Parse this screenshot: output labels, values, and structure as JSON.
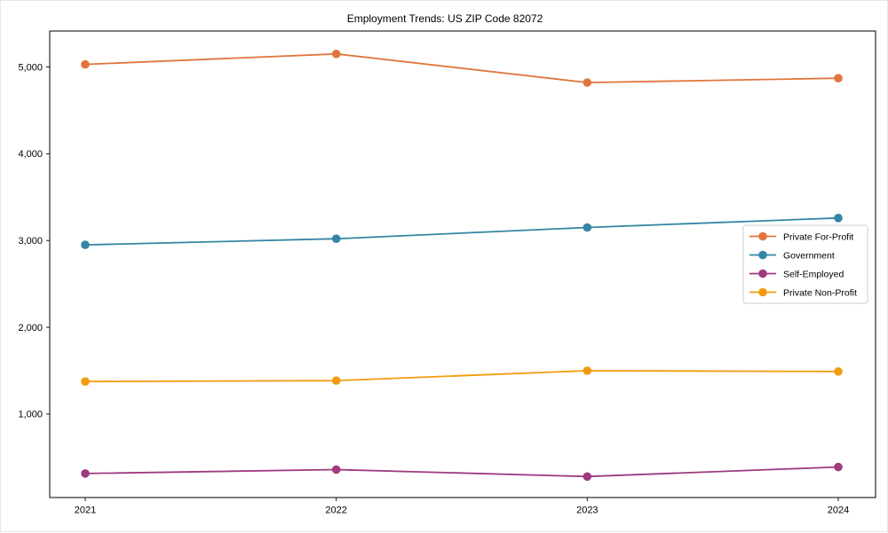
{
  "figure": {
    "title": "Employment Trends: US ZIP Code 82072"
  },
  "chart_data": {
    "type": "line",
    "title": "Employment Trends: US ZIP Code 82072",
    "xlabel": "",
    "ylabel": "",
    "x": [
      2021,
      2022,
      2023,
      2024
    ],
    "xtick_labels": [
      "2021",
      "2022",
      "2023",
      "2024"
    ],
    "yticks": [
      1000,
      2000,
      3000,
      4000,
      5000
    ],
    "ytick_labels": [
      "1,000",
      "2,000",
      "3,000",
      "4,000",
      "5,000"
    ],
    "ylim": [
      38,
      5414
    ],
    "grid": false,
    "legend_position": "center right",
    "series": [
      {
        "name": "Private For-Profit",
        "color": "#e0763c",
        "values": [
          5030,
          5150,
          4820,
          4870
        ]
      },
      {
        "name": "Government",
        "color": "#3585a4",
        "values": [
          2950,
          3020,
          3150,
          3260
        ]
      },
      {
        "name": "Self-Employed",
        "color": "#9e3a80",
        "values": [
          315,
          360,
          280,
          390
        ]
      },
      {
        "name": "Private Non-Profit",
        "color": "#f29c0d",
        "values": [
          1375,
          1385,
          1500,
          1490
        ]
      }
    ]
  }
}
